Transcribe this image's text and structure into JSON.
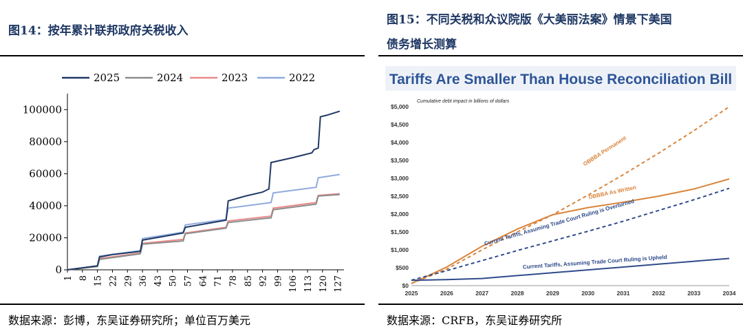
{
  "left": {
    "figure_title": "图14：按年累计联邦政府关税收入",
    "source": "数据来源：彭博，东吴证券研究所；单位百万美元"
  },
  "right": {
    "figure_title_line1": "图15：不同关税和众议院版《大美丽法案》情景下美国",
    "figure_title_line2": "债务增长测算",
    "source": "数据来源：CRFB，东吴证券研究所"
  },
  "chart_data": [
    {
      "type": "line",
      "title": "",
      "xlabel": "",
      "ylabel": "",
      "x_tick_labels": [
        "1",
        "8",
        "15",
        "22",
        "29",
        "36",
        "43",
        "50",
        "57",
        "64",
        "71",
        "78",
        "85",
        "92",
        "99",
        "106",
        "113",
        "120",
        "127"
      ],
      "ylim": [
        0,
        110000
      ],
      "y_ticks": [
        0,
        20000,
        40000,
        60000,
        80000,
        100000
      ],
      "legend_placement": "top",
      "grid": false,
      "series": [
        {
          "name": "2025",
          "color": "#1f3864",
          "points": [
            [
              1,
              0
            ],
            [
              15,
              2500
            ],
            [
              16,
              8000
            ],
            [
              22,
              9500
            ],
            [
              35,
              11500
            ],
            [
              36,
              18500
            ],
            [
              55,
              23000
            ],
            [
              56,
              26500
            ],
            [
              75,
              31000
            ],
            [
              76,
              43000
            ],
            [
              80,
              44500
            ],
            [
              84,
              46000
            ],
            [
              92,
              48500
            ],
            [
              95,
              50500
            ],
            [
              96,
              67000
            ],
            [
              106,
              70000
            ],
            [
              115,
              73000
            ],
            [
              116,
              75000
            ],
            [
              118,
              76000
            ],
            [
              119,
              95500
            ],
            [
              122,
              96500
            ],
            [
              128,
              99000
            ]
          ]
        },
        {
          "name": "2024",
          "color": "#8c8c8c",
          "points": [
            [
              1,
              0
            ],
            [
              15,
              2000
            ],
            [
              16,
              6500
            ],
            [
              35,
              10000
            ],
            [
              36,
              16000
            ],
            [
              55,
              18000
            ],
            [
              56,
              22500
            ],
            [
              75,
              26000
            ],
            [
              76,
              29500
            ],
            [
              96,
              32500
            ],
            [
              97,
              37500
            ],
            [
              117,
              41000
            ],
            [
              118,
              46000
            ],
            [
              128,
              47000
            ]
          ]
        },
        {
          "name": "2023",
          "color": "#e88a8a",
          "points": [
            [
              1,
              0
            ],
            [
              15,
              2200
            ],
            [
              16,
              7000
            ],
            [
              35,
              10500
            ],
            [
              36,
              16500
            ],
            [
              55,
              19000
            ],
            [
              56,
              23000
            ],
            [
              75,
              26500
            ],
            [
              76,
              30500
            ],
            [
              96,
              33500
            ],
            [
              97,
              38500
            ],
            [
              117,
              42000
            ],
            [
              118,
              46500
            ],
            [
              128,
              47500
            ]
          ]
        },
        {
          "name": "2022",
          "color": "#8faadc",
          "points": [
            [
              1,
              0
            ],
            [
              15,
              2500
            ],
            [
              16,
              8500
            ],
            [
              35,
              12000
            ],
            [
              36,
              19500
            ],
            [
              55,
              23500
            ],
            [
              56,
              28000
            ],
            [
              75,
              31500
            ],
            [
              76,
              38500
            ],
            [
              96,
              42000
            ],
            [
              97,
              48000
            ],
            [
              117,
              51500
            ],
            [
              118,
              57500
            ],
            [
              128,
              59500
            ]
          ]
        }
      ]
    },
    {
      "type": "line",
      "title": "Tariffs Are Smaller Than House Reconciliation Bill",
      "subtitle": "Cumulative debt impact in billions of dollars",
      "xlabel": "",
      "ylabel": "",
      "x": [
        2025,
        2026,
        2027,
        2028,
        2029,
        2030,
        2031,
        2032,
        2033,
        2034
      ],
      "y_tick_labels": [
        "$0",
        "$500",
        "$1,000",
        "$1,500",
        "$2,000",
        "$2,500",
        "$3,000",
        "$3,500",
        "$4,000",
        "$4,500",
        "$5,000"
      ],
      "ylim": [
        0,
        5000
      ],
      "grid": false,
      "series": [
        {
          "name": "OBBBA Permanent",
          "color": "#d9843b",
          "style": "dashed",
          "values": [
            60,
            460,
            1000,
            1500,
            1980,
            2530,
            3100,
            3700,
            4330,
            5000
          ]
        },
        {
          "name": "OBBBA As Written",
          "color": "#d9843b",
          "style": "solid",
          "values": [
            60,
            520,
            1100,
            1580,
            1980,
            2180,
            2330,
            2500,
            2700,
            2980
          ]
        },
        {
          "name": "Current Tariffs, Assuming Trade Court Ruling is Overturned",
          "color": "#2e4a8a",
          "style": "dashed",
          "values": [
            150,
            420,
            700,
            980,
            1250,
            1520,
            1800,
            2100,
            2400,
            2720
          ]
        },
        {
          "name": "Current Tariffs, Assuming Trade Court Ruling is Upheld",
          "color": "#2e4a8a",
          "style": "solid",
          "values": [
            150,
            170,
            200,
            280,
            360,
            440,
            520,
            600,
            680,
            760
          ]
        }
      ]
    }
  ]
}
